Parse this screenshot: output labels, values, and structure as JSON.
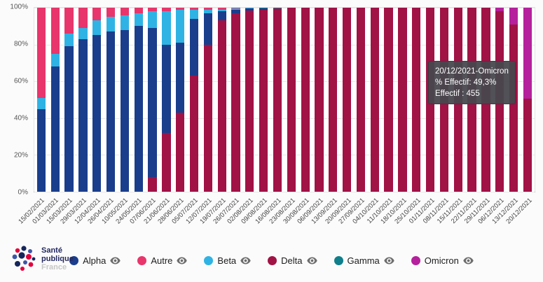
{
  "chart_data": {
    "type": "bar",
    "variant": "stacked-100-percent",
    "title": "",
    "xlabel": "",
    "ylabel": "",
    "ylim": [
      0,
      100
    ],
    "grid": true,
    "legend_position": "bottom",
    "y_tick_labels": [
      "0%",
      "20%",
      "40%",
      "60%",
      "80%",
      "100%"
    ],
    "categories": [
      "15/02/2021",
      "01/03/2021",
      "15/03/2021",
      "29/03/2021",
      "12/04/2021",
      "26/04/2021",
      "10/05/2021",
      "24/05/2021",
      "07/06/2021",
      "21/06/2021",
      "28/06/2021",
      "05/07/2021",
      "12/07/2021",
      "19/07/2021",
      "26/07/2021",
      "02/08/2021",
      "09/08/2021",
      "16/08/2021",
      "23/08/2021",
      "30/08/2021",
      "06/09/2021",
      "13/09/2021",
      "20/09/2021",
      "27/09/2021",
      "04/10/2021",
      "11/10/2021",
      "18/10/2021",
      "25/10/2021",
      "01/11/2021",
      "08/11/2021",
      "15/11/2021",
      "22/11/2021",
      "29/11/2021",
      "06/12/2021",
      "13/12/2021",
      "20/12/2021"
    ],
    "stack_order": [
      "Delta",
      "Alpha",
      "Beta",
      "Autre",
      "Gamma",
      "Omicron"
    ],
    "series": [
      {
        "name": "Alpha",
        "color": "#1a3e8c",
        "values": [
          45,
          68,
          79,
          83,
          85,
          87,
          88,
          90,
          81,
          48,
          38,
          31,
          17,
          5,
          2,
          1,
          0.5,
          0,
          0,
          0,
          0,
          0,
          0,
          0,
          0,
          0,
          0,
          0,
          0,
          0,
          0,
          0,
          0,
          0,
          0,
          0
        ]
      },
      {
        "name": "Autre",
        "color": "#e8356b",
        "values": [
          49,
          25,
          14,
          11,
          7,
          5,
          4,
          3,
          2,
          2,
          1,
          1,
          1,
          1,
          0.5,
          0,
          0,
          0,
          0,
          0,
          0,
          0,
          0,
          0,
          0,
          0,
          0,
          0,
          0,
          0,
          0,
          0,
          0,
          0,
          0,
          0
        ]
      },
      {
        "name": "Beta",
        "color": "#2fb3e4",
        "values": [
          6,
          7,
          7,
          6,
          8,
          8,
          8,
          7,
          9,
          18,
          18,
          5,
          2,
          1,
          0.5,
          0.5,
          0,
          0,
          0,
          0,
          0,
          0,
          0,
          0,
          0,
          0,
          0,
          0,
          0,
          0,
          0,
          0,
          0,
          0,
          0,
          0
        ]
      },
      {
        "name": "Delta",
        "color": "#a11245",
        "values": [
          0,
          0,
          0,
          0,
          0,
          0,
          0,
          0,
          8,
          32,
          43,
          63,
          80,
          93,
          97,
          98.5,
          99,
          99.5,
          100,
          100,
          100,
          100,
          100,
          100,
          100,
          100,
          100,
          100,
          100,
          100,
          100,
          100,
          100,
          98,
          91,
          50.7
        ]
      },
      {
        "name": "Gamma",
        "color": "#0f7f8b",
        "values": [
          0,
          0,
          0,
          0,
          0,
          0,
          0,
          0,
          0,
          0,
          0,
          0,
          0,
          0,
          0,
          0,
          0.5,
          0.5,
          0,
          0,
          0,
          0,
          0,
          0,
          0,
          0,
          0,
          0,
          0,
          0,
          0,
          0,
          0,
          0,
          0,
          0
        ]
      },
      {
        "name": "Omicron",
        "color": "#b5209c",
        "values": [
          0,
          0,
          0,
          0,
          0,
          0,
          0,
          0,
          0,
          0,
          0,
          0,
          0,
          0,
          0,
          0,
          0,
          0,
          0,
          0,
          0,
          0,
          0,
          0,
          0,
          0,
          0,
          0,
          0,
          0,
          0,
          0,
          0,
          2,
          9,
          49.3
        ]
      }
    ]
  },
  "tooltip": {
    "title": "20/12/2021-Omicron",
    "percent_line": "% Effectif: 49,3%",
    "count_line": "Effectif : 455"
  },
  "logo": {
    "line1": "Santé",
    "line2": "publique",
    "line3": "France"
  }
}
